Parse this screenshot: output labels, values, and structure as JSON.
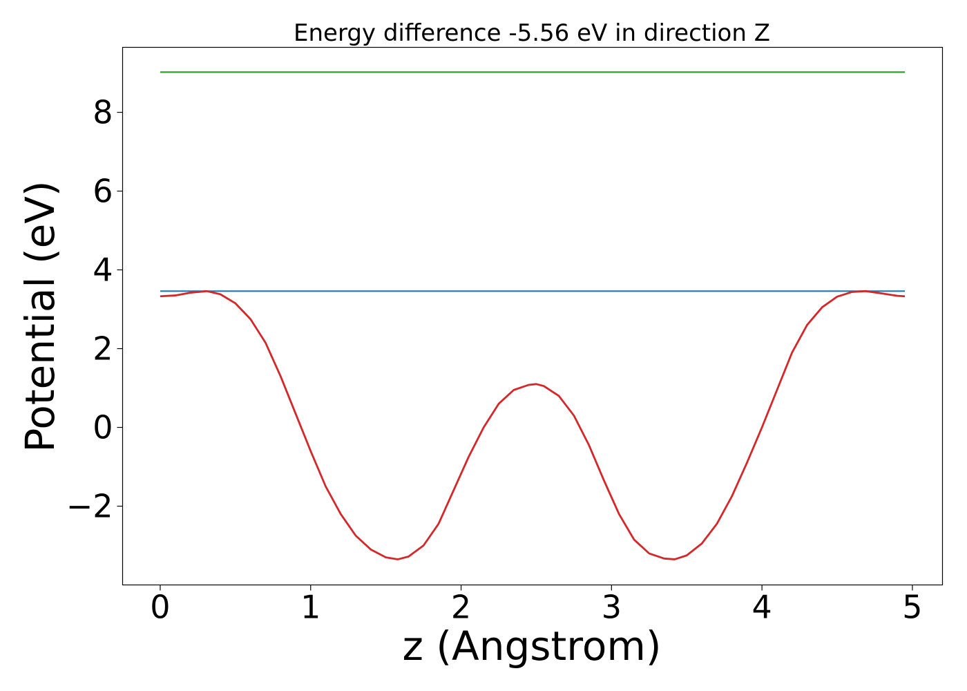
{
  "chart_data": {
    "type": "line",
    "title": "Energy difference -5.56 eV in direction Z",
    "xlabel": "z (Angstrom)",
    "ylabel": "Potential (eV)",
    "xlim": [
      -0.25,
      5.2
    ],
    "ylim": [
      -4.0,
      9.65
    ],
    "xticks": [
      0,
      1,
      2,
      3,
      4,
      5
    ],
    "xtick_labels": [
      "0",
      "1",
      "2",
      "3",
      "4",
      "5"
    ],
    "yticks": [
      -2,
      0,
      2,
      4,
      6,
      8
    ],
    "ytick_labels": [
      "−2",
      "0",
      "2",
      "4",
      "6",
      "8"
    ],
    "grid": false,
    "series": [
      {
        "color": "#2ca02c",
        "x": [
          0,
          4.95
        ],
        "y": [
          9.02,
          9.02
        ]
      },
      {
        "color": "#1f77b4",
        "x": [
          0,
          4.95
        ],
        "y": [
          3.46,
          3.46
        ]
      },
      {
        "color": "#d62728",
        "x": [
          0,
          0.1,
          0.2,
          0.31,
          0.4,
          0.5,
          0.6,
          0.7,
          0.8,
          0.9,
          1.0,
          1.1,
          1.2,
          1.3,
          1.4,
          1.5,
          1.58,
          1.65,
          1.75,
          1.85,
          1.95,
          2.05,
          2.15,
          2.25,
          2.35,
          2.45,
          2.5,
          2.55,
          2.65,
          2.75,
          2.85,
          2.95,
          3.05,
          3.15,
          3.25,
          3.35,
          3.42,
          3.5,
          3.6,
          3.7,
          3.8,
          3.9,
          4.0,
          4.1,
          4.2,
          4.3,
          4.4,
          4.5,
          4.6,
          4.69,
          4.8,
          4.9,
          4.95
        ],
        "y": [
          3.33,
          3.35,
          3.42,
          3.46,
          3.38,
          3.15,
          2.75,
          2.15,
          1.3,
          0.35,
          -0.6,
          -1.5,
          -2.2,
          -2.75,
          -3.1,
          -3.3,
          -3.35,
          -3.28,
          -3.0,
          -2.45,
          -1.6,
          -0.75,
          0.0,
          0.6,
          0.95,
          1.08,
          1.1,
          1.05,
          0.8,
          0.3,
          -0.45,
          -1.35,
          -2.2,
          -2.85,
          -3.2,
          -3.33,
          -3.35,
          -3.25,
          -2.95,
          -2.45,
          -1.75,
          -0.9,
          0.0,
          0.95,
          1.9,
          2.6,
          3.05,
          3.32,
          3.44,
          3.46,
          3.4,
          3.34,
          3.33
        ]
      }
    ]
  }
}
